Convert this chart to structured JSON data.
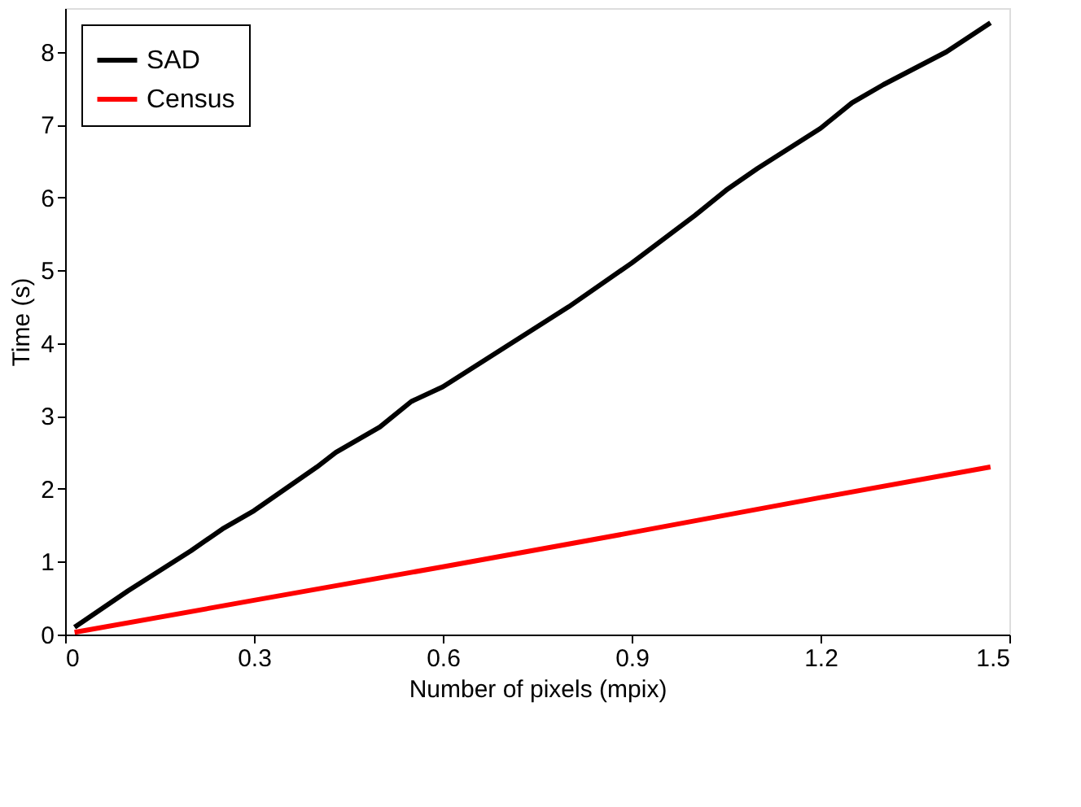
{
  "chart_data": {
    "type": "line",
    "xlabel": "Number of pixels (mpix)",
    "ylabel": "Time (s)",
    "xlim": [
      0,
      1.5
    ],
    "xticks": [
      0,
      0.3,
      0.6,
      0.9,
      1.2,
      1.5
    ],
    "ylim": [
      0,
      8.6
    ],
    "yticks": [
      0,
      1,
      2,
      3,
      4,
      5,
      6,
      7,
      8
    ],
    "grid": false,
    "legend": "top left",
    "line_style": "solid",
    "marker": "none",
    "series": [
      {
        "name": "SAD",
        "color": "#000000",
        "x": [
          0.015,
          0.1,
          0.2,
          0.25,
          0.3,
          0.4,
          0.43,
          0.5,
          0.55,
          0.6,
          0.7,
          0.8,
          0.9,
          1.0,
          1.05,
          1.1,
          1.2,
          1.25,
          1.3,
          1.4,
          1.47
        ],
        "values": [
          0.1,
          0.6,
          1.15,
          1.45,
          1.7,
          2.3,
          2.5,
          2.85,
          3.2,
          3.4,
          3.95,
          4.5,
          5.1,
          5.75,
          6.1,
          6.4,
          6.95,
          7.3,
          7.55,
          8.0,
          8.4
        ]
      },
      {
        "name": "Census",
        "color": "#ff0000",
        "x": [
          0.015,
          0.3,
          0.6,
          0.9,
          1.2,
          1.47
        ],
        "values": [
          0.03,
          0.47,
          0.93,
          1.4,
          1.88,
          2.3
        ]
      }
    ]
  }
}
